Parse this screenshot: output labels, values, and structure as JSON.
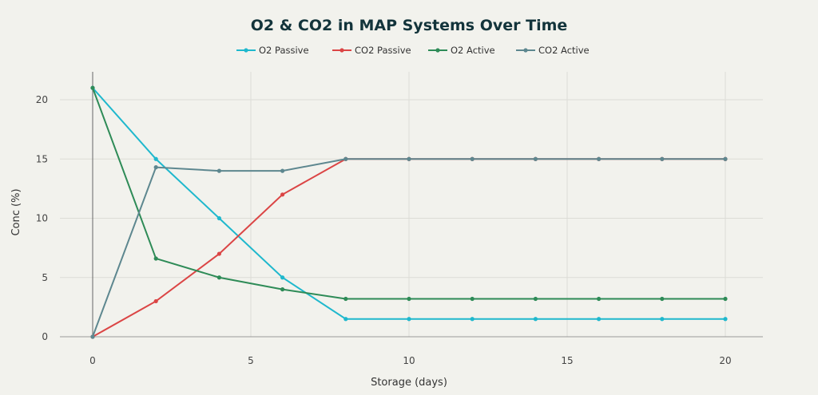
{
  "chart_data": {
    "type": "line",
    "title": "O2 & CO2 in MAP Systems Over Time",
    "xlabel": "Storage (days)",
    "ylabel": "Conc (%)",
    "xlim": [
      -2,
      21.2
    ],
    "ylim": [
      -0.5,
      22
    ],
    "xticks": [
      0,
      5,
      10,
      15,
      20
    ],
    "yticks": [
      0,
      5,
      10,
      15,
      20
    ],
    "grid": true,
    "legend_position": "top-center",
    "x": [
      0,
      2,
      4,
      6,
      8,
      10,
      12,
      14,
      16,
      18,
      20
    ],
    "series": [
      {
        "name": "O2 Passive",
        "color": "#1fb8cd",
        "values": [
          21,
          15,
          10,
          5,
          1.5,
          1.5,
          1.5,
          1.5,
          1.5,
          1.5,
          1.5
        ]
      },
      {
        "name": "CO2 Passive",
        "color": "#db4545",
        "values": [
          0,
          3,
          7,
          12,
          15,
          15,
          15,
          15,
          15,
          15,
          15
        ]
      },
      {
        "name": "O2 Active",
        "color": "#2e8b57",
        "values": [
          21,
          6.6,
          5,
          4,
          3.2,
          3.2,
          3.2,
          3.2,
          3.2,
          3.2,
          3.2
        ]
      },
      {
        "name": "CO2 Active",
        "color": "#5d878f",
        "values": [
          0,
          14.3,
          14,
          14,
          15,
          15,
          15,
          15,
          15,
          15,
          15
        ]
      }
    ]
  }
}
